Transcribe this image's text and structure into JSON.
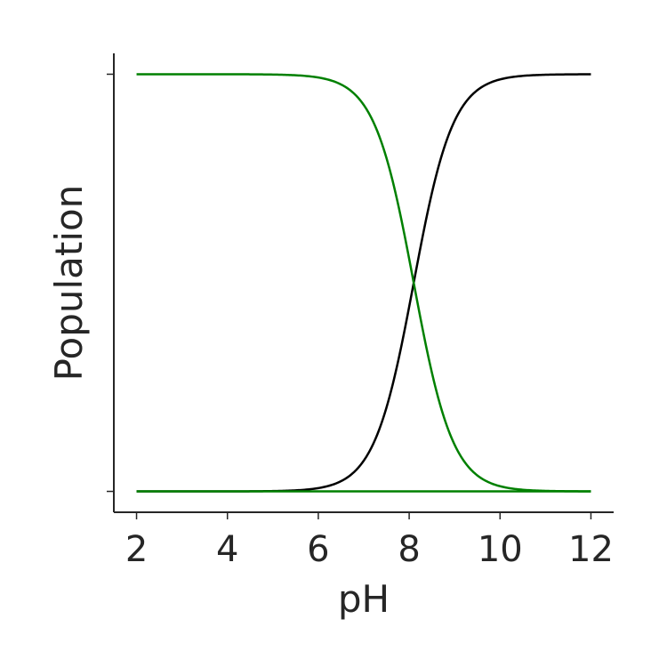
{
  "chart_data": {
    "type": "line",
    "xlabel": "pH",
    "ylabel": "Population",
    "xlim": [
      1.5,
      12.5
    ],
    "ylim": [
      -0.05,
      1.05
    ],
    "xticks": [
      2,
      4,
      6,
      8,
      10,
      12
    ],
    "xtick_labels": [
      "2",
      "4",
      "6",
      "8",
      "10",
      "12"
    ],
    "yticks": [
      0,
      1
    ],
    "yticks_labeled": false,
    "grid": false,
    "pKa": 8.1,
    "x_range": [
      2,
      12
    ],
    "series": [
      {
        "color": "#000000",
        "shape": "sigmoid rising from 0 to 1, midpoint at pH 8.1",
        "x": [
          2,
          5,
          6,
          6.5,
          7,
          7.5,
          7.8,
          8.1,
          8.4,
          8.7,
          9.2,
          9.7,
          10.2,
          11,
          12
        ],
        "y": [
          0.0,
          0.001,
          0.008,
          0.025,
          0.074,
          0.2,
          0.33,
          0.5,
          0.67,
          0.8,
          0.926,
          0.975,
          0.992,
          0.999,
          1.0
        ]
      },
      {
        "color": "#008000",
        "shape": "sigmoid falling from 1 to 0, midpoint at pH 8.1",
        "x": [
          2,
          5,
          6,
          6.5,
          7,
          7.5,
          7.8,
          8.1,
          8.4,
          8.7,
          9.2,
          9.7,
          10.2,
          11,
          12
        ],
        "y": [
          1.0,
          0.999,
          0.992,
          0.975,
          0.926,
          0.8,
          0.67,
          0.5,
          0.33,
          0.2,
          0.074,
          0.025,
          0.008,
          0.001,
          0.0
        ]
      },
      {
        "color": "#008000",
        "shape": "flat baseline at 0",
        "x": [
          2,
          12
        ],
        "y": [
          0,
          0
        ]
      }
    ]
  }
}
